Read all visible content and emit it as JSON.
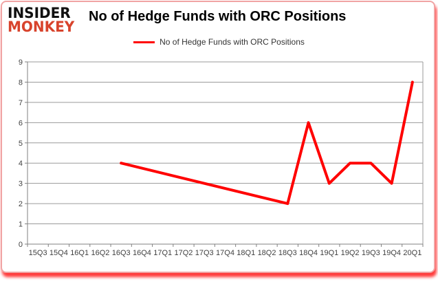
{
  "brand": {
    "line1": "INSIDER",
    "line2": "MONKEY",
    "color": "#d8432c"
  },
  "header": {
    "title": "No of Hedge Funds with ORC Positions"
  },
  "legend": {
    "label": "No of Hedge Funds with ORC Positions"
  },
  "chart_data": {
    "type": "line",
    "title": "No of Hedge Funds with ORC Positions",
    "categories": [
      "15Q3",
      "15Q4",
      "16Q1",
      "16Q2",
      "16Q3",
      "16Q4",
      "17Q1",
      "17Q2",
      "17Q3",
      "17Q4",
      "18Q1",
      "18Q2",
      "18Q3",
      "18Q4",
      "19Q1",
      "19Q2",
      "19Q3",
      "19Q4",
      "20Q1"
    ],
    "series": [
      {
        "name": "No of Hedge Funds with ORC Positions",
        "color": "#ff0000",
        "connect_gaps": true,
        "values": [
          null,
          null,
          null,
          null,
          4,
          null,
          null,
          null,
          null,
          null,
          null,
          null,
          2,
          6,
          3,
          4,
          4,
          3,
          8
        ]
      }
    ],
    "xlabel": "",
    "ylabel": "",
    "ylim": [
      0,
      9
    ],
    "ytick_interval": 1,
    "grid": "horizontal",
    "legend_position": "top-center"
  },
  "colors": {
    "line": "#ff0000",
    "grid": "#9a9a9a",
    "axis": "#808080",
    "tick_label": "#3f3f3f",
    "title": "#000000",
    "legend_text": "#333333",
    "card_border": "#f0a4a4",
    "background": "#ffffff"
  }
}
